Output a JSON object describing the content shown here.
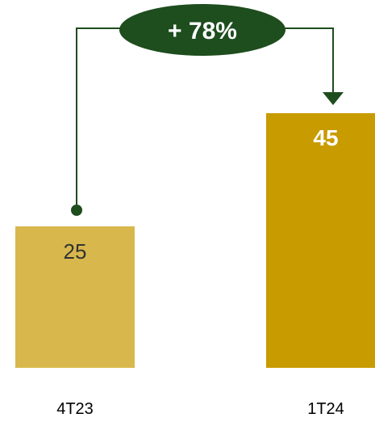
{
  "chart_data": {
    "type": "bar",
    "categories": [
      "4T23",
      "1T24"
    ],
    "values": [
      25,
      45
    ],
    "value_labels": [
      "25",
      "45"
    ],
    "annotation": {
      "label": "+ 78%",
      "from": "4T23",
      "to": "1T24"
    },
    "colors": {
      "bar_1": "#D8B84C",
      "bar_2": "#C89B00",
      "connector": "#1E4D1E",
      "badge": "#1E4D1E",
      "badge_text": "#FFFFFF",
      "value_label_1": "#333333",
      "value_label_2": "#FFFFFF",
      "axis_label": "#000000"
    },
    "grid": false,
    "legend": "none"
  }
}
